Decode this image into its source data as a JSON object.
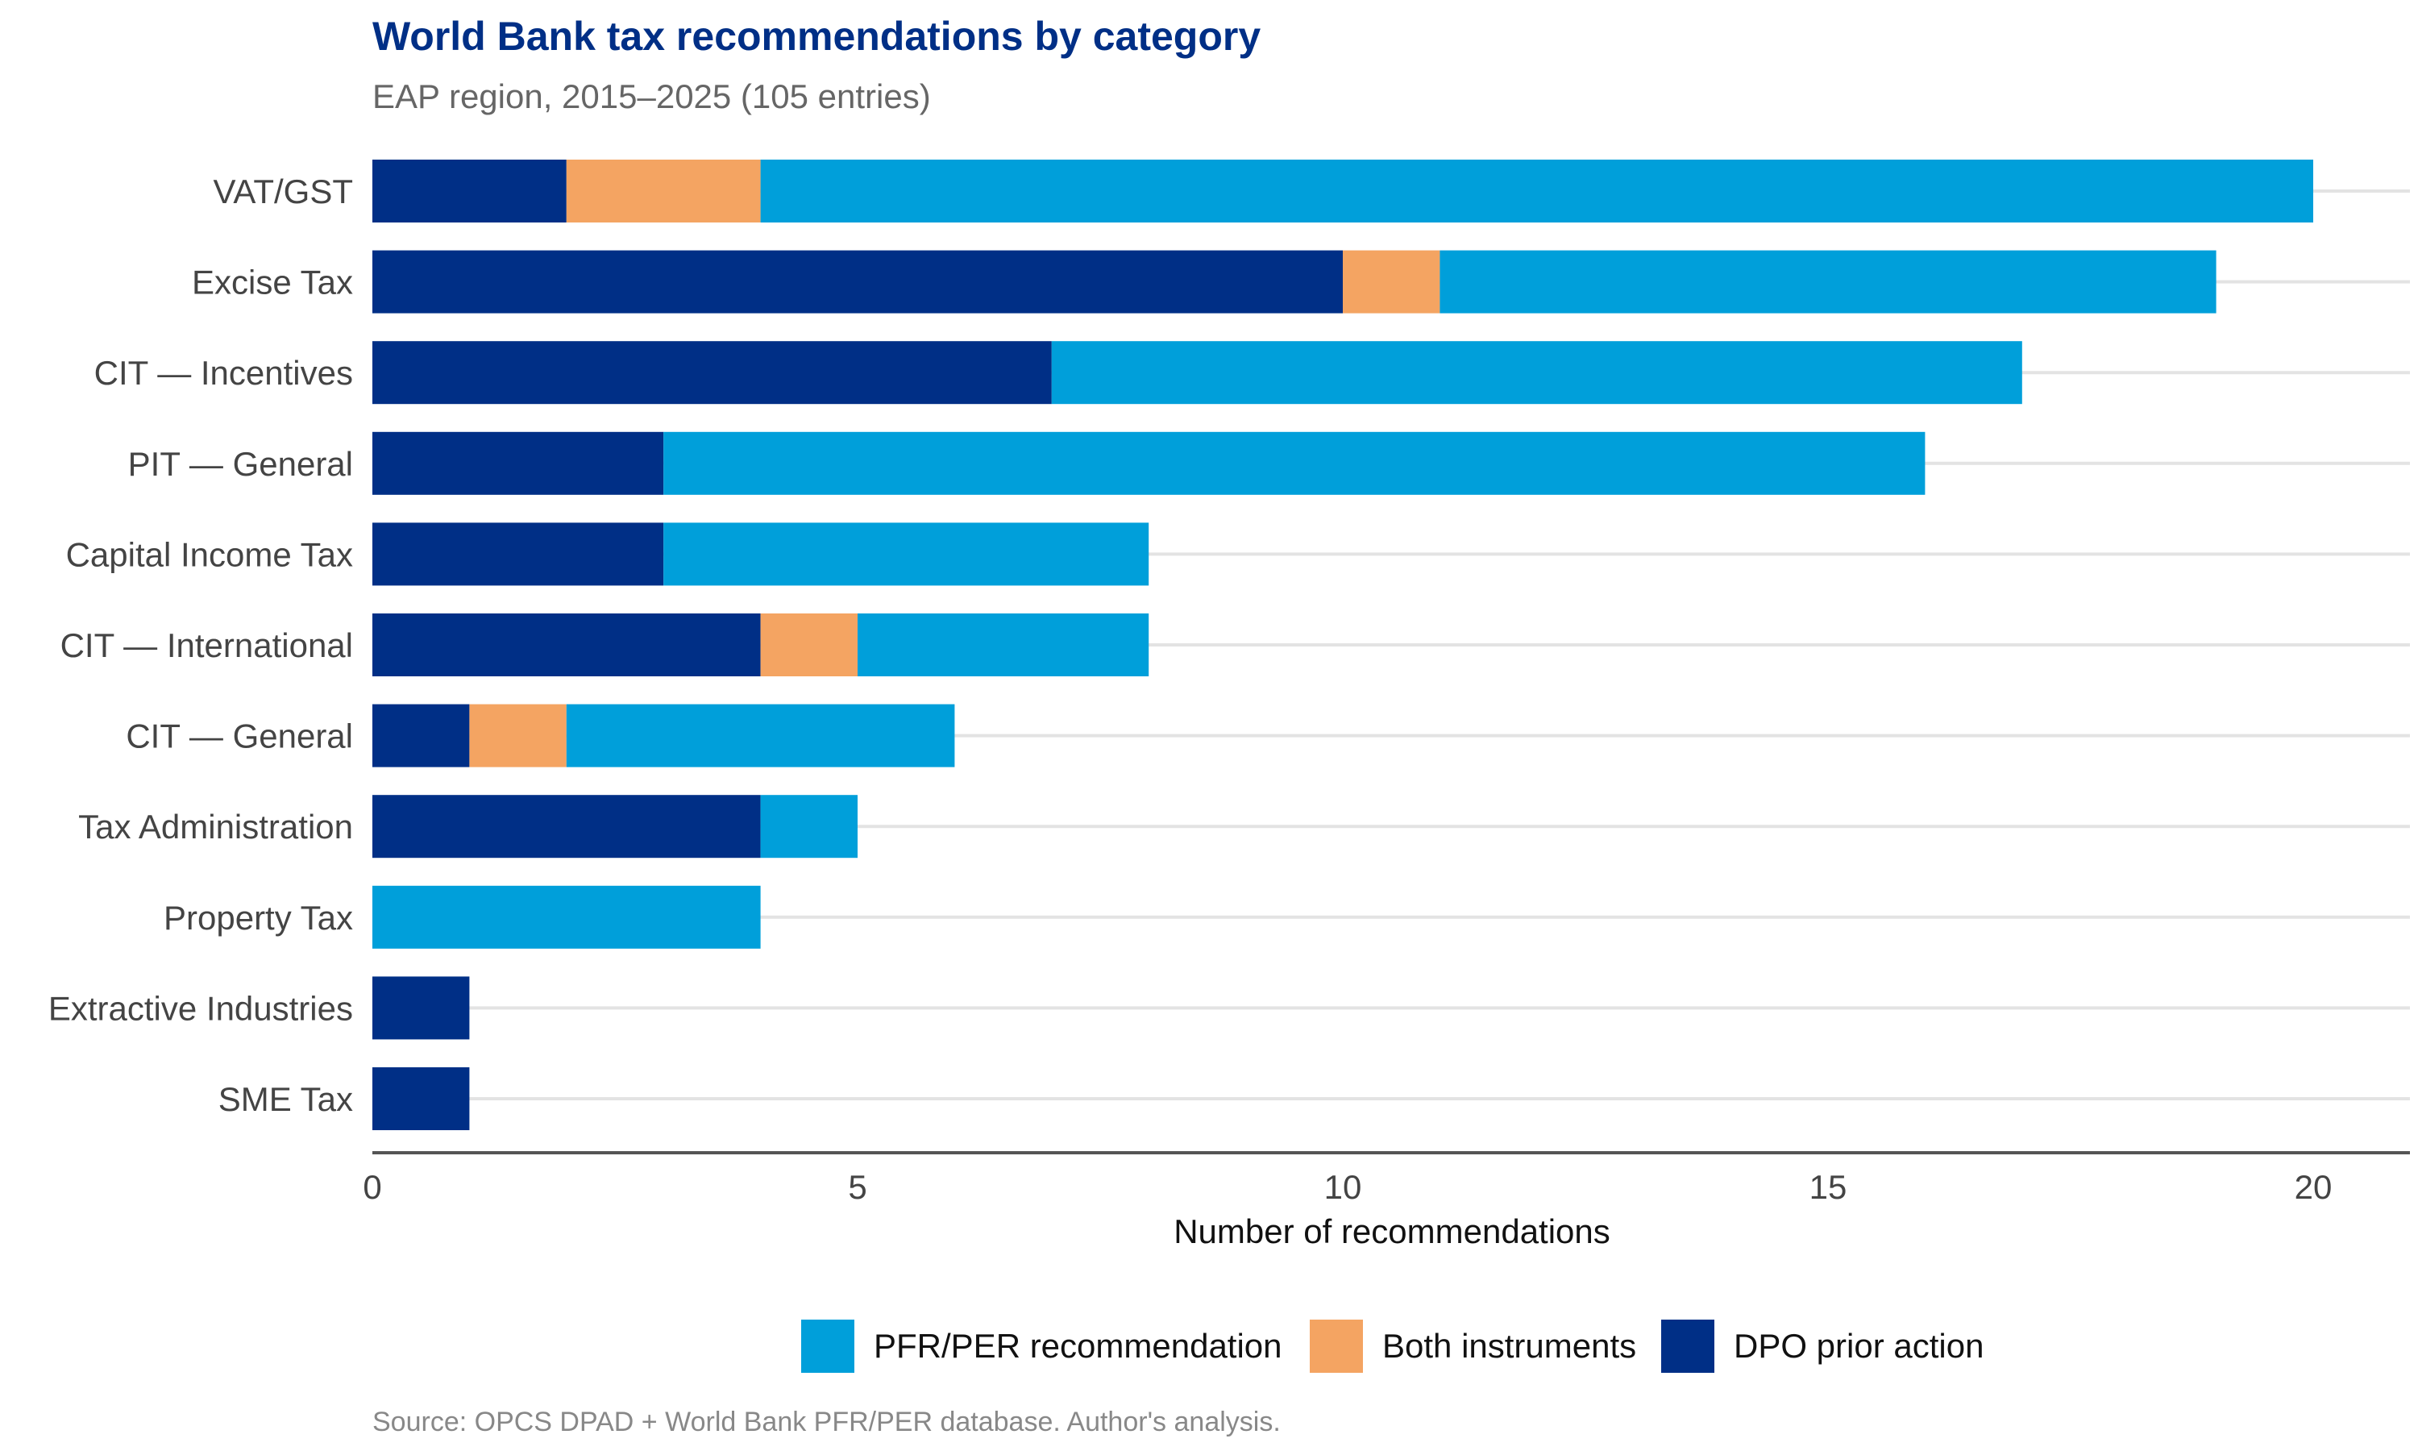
{
  "chart_data": {
    "type": "bar",
    "orientation": "horizontal",
    "stacked": true,
    "title": "World Bank tax recommendations by category",
    "subtitle": "EAP region, 2015–2025 (105 entries)",
    "xlabel": "Number of recommendations",
    "ylabel": "",
    "xlim": [
      0,
      21
    ],
    "x_ticks": [
      0,
      5,
      10,
      15,
      20
    ],
    "grid": "horizontal lines per category",
    "legend_position": "bottom",
    "categories": [
      "VAT/GST",
      "Excise Tax",
      "CIT — Incentives",
      "PIT — General",
      "Capital Income Tax",
      "CIT — International",
      "CIT — General",
      "Tax Administration",
      "Property Tax",
      "Extractive Industries",
      "SME Tax"
    ],
    "series": [
      {
        "name": "DPO prior action",
        "color": "#002F86",
        "values": [
          2,
          10,
          7,
          3,
          3,
          4,
          1,
          4,
          0,
          1,
          1
        ]
      },
      {
        "name": "Both instruments",
        "color": "#F4A462",
        "values": [
          2,
          1,
          0,
          0,
          0,
          1,
          1,
          0,
          0,
          0,
          0
        ]
      },
      {
        "name": "PFR/PER recommendation",
        "color": "#009FDA",
        "values": [
          16,
          8,
          10,
          13,
          5,
          3,
          4,
          1,
          4,
          0,
          0
        ]
      }
    ],
    "legend_order": [
      "PFR/PER recommendation",
      "Both instruments",
      "DPO prior action"
    ],
    "caption": "Source: OPCS DPAD + World Bank PFR/PER database. Author's analysis."
  },
  "colors": {
    "title": "#002F86",
    "subtitle": "#666666",
    "label": "#444444",
    "axis": "#555555",
    "grid": "#E3E3E3",
    "caption": "#888888"
  }
}
